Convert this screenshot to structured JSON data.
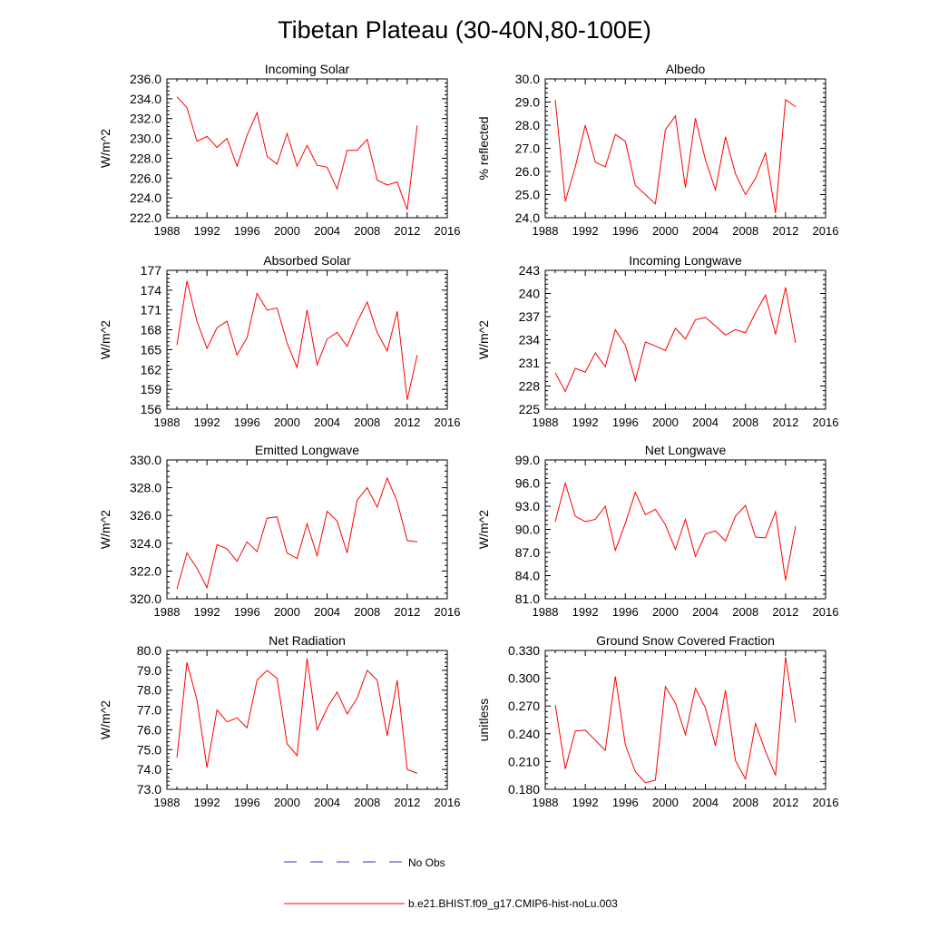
{
  "title": "Tibetan Plateau (30-40N,80-100E)",
  "colors": {
    "model": "#ff0000",
    "obs": "#3030c0",
    "axis": "#000000"
  },
  "legend": {
    "obs_label": "No Obs",
    "model_label": "b.e21.BHIST.f09_g17.CMIP6-hist-noLu.003"
  },
  "chart_data": [
    {
      "type": "line",
      "title": "Incoming Solar",
      "ylabel": "W/m^2",
      "xlim": [
        1988,
        2016
      ],
      "ylim": [
        222.0,
        236.0
      ],
      "x_ticks": [
        "1988",
        "1992",
        "1996",
        "2000",
        "2004",
        "2008",
        "2012",
        "2016"
      ],
      "y_ticks": [
        "222.0",
        "224.0",
        "226.0",
        "228.0",
        "230.0",
        "232.0",
        "234.0",
        "236.0"
      ],
      "x": [
        1989,
        1990,
        1991,
        1992,
        1993,
        1994,
        1995,
        1996,
        1997,
        1998,
        1999,
        2000,
        2001,
        2002,
        2003,
        2004,
        2005,
        2006,
        2007,
        2008,
        2009,
        2010,
        2011,
        2012,
        2013
      ],
      "series": [
        {
          "name": "b.e21.BHIST.f09_g17.CMIP6-hist-noLu.003",
          "values": [
            234.2,
            233.1,
            229.7,
            230.2,
            229.1,
            230.0,
            227.2,
            230.3,
            232.6,
            228.2,
            227.4,
            230.5,
            227.2,
            229.3,
            227.3,
            227.1,
            224.9,
            228.8,
            228.8,
            229.9,
            225.8,
            225.3,
            225.6,
            222.8,
            231.3
          ]
        }
      ]
    },
    {
      "type": "line",
      "title": "Albedo",
      "ylabel": "% reflected",
      "xlim": [
        1988,
        2016
      ],
      "ylim": [
        24.0,
        30.0
      ],
      "x_ticks": [
        "1988",
        "1992",
        "1996",
        "2000",
        "2004",
        "2008",
        "2012",
        "2016"
      ],
      "y_ticks": [
        "24.0",
        "25.0",
        "26.0",
        "27.0",
        "28.0",
        "29.0",
        "30.0"
      ],
      "x": [
        1989,
        1990,
        1991,
        1992,
        1993,
        1994,
        1995,
        1996,
        1997,
        1998,
        1999,
        2000,
        2001,
        2002,
        2003,
        2004,
        2005,
        2006,
        2007,
        2008,
        2009,
        2010,
        2011,
        2012,
        2013
      ],
      "series": [
        {
          "name": "b.e21.BHIST.f09_g17.CMIP6-hist-noLu.003",
          "values": [
            29.1,
            24.7,
            26.2,
            28.0,
            26.4,
            26.2,
            27.6,
            27.3,
            25.4,
            25.0,
            24.6,
            27.8,
            28.4,
            25.3,
            28.3,
            26.5,
            25.2,
            27.5,
            25.9,
            25.0,
            25.7,
            26.8,
            24.2,
            29.1,
            28.8
          ]
        }
      ]
    },
    {
      "type": "line",
      "title": "Absorbed Solar",
      "ylabel": "W/m^2",
      "xlim": [
        1988,
        2016
      ],
      "ylim": [
        156,
        177
      ],
      "x_ticks": [
        "1988",
        "1992",
        "1996",
        "2000",
        "2004",
        "2008",
        "2012",
        "2016"
      ],
      "y_ticks": [
        "156",
        "159",
        "162",
        "165",
        "168",
        "171",
        "174",
        "177"
      ],
      "x": [
        1989,
        1990,
        1991,
        1992,
        1993,
        1994,
        1995,
        1996,
        1997,
        1998,
        1999,
        2000,
        2001,
        2002,
        2003,
        2004,
        2005,
        2006,
        2007,
        2008,
        2009,
        2010,
        2011,
        2012,
        2013
      ],
      "series": [
        {
          "name": "b.e21.BHIST.f09_g17.CMIP6-hist-noLu.003",
          "values": [
            165.7,
            175.4,
            169.3,
            165.2,
            168.3,
            169.3,
            164.2,
            166.8,
            173.5,
            171.0,
            171.3,
            166.0,
            162.3,
            171.0,
            162.7,
            166.6,
            167.6,
            165.5,
            169.2,
            172.2,
            167.6,
            164.8,
            170.8,
            157.4,
            164.2
          ]
        }
      ]
    },
    {
      "type": "line",
      "title": "Incoming Longwave",
      "ylabel": "W/m^2",
      "xlim": [
        1988,
        2016
      ],
      "ylim": [
        225,
        243
      ],
      "x_ticks": [
        "1988",
        "1992",
        "1996",
        "2000",
        "2004",
        "2008",
        "2012",
        "2016"
      ],
      "y_ticks": [
        "225",
        "228",
        "231",
        "234",
        "237",
        "240",
        "243"
      ],
      "x": [
        1989,
        1990,
        1991,
        1992,
        1993,
        1994,
        1995,
        1996,
        1997,
        1998,
        1999,
        2000,
        2001,
        2002,
        2003,
        2004,
        2005,
        2006,
        2007,
        2008,
        2009,
        2010,
        2011,
        2012,
        2013
      ],
      "series": [
        {
          "name": "b.e21.BHIST.f09_g17.CMIP6-hist-noLu.003",
          "values": [
            229.7,
            227.3,
            230.3,
            229.8,
            232.3,
            230.5,
            235.3,
            233.3,
            228.7,
            233.7,
            233.2,
            232.6,
            235.5,
            234.1,
            236.6,
            236.9,
            235.8,
            234.6,
            235.3,
            234.9,
            237.5,
            239.8,
            234.7,
            240.8,
            233.6
          ]
        }
      ]
    },
    {
      "type": "line",
      "title": "Emitted Longwave",
      "ylabel": "W/m^2",
      "xlim": [
        1988,
        2016
      ],
      "ylim": [
        320.0,
        330.0
      ],
      "x_ticks": [
        "1988",
        "1992",
        "1996",
        "2000",
        "2004",
        "2008",
        "2012",
        "2016"
      ],
      "y_ticks": [
        "320.0",
        "322.0",
        "324.0",
        "326.0",
        "328.0",
        "330.0"
      ],
      "x": [
        1989,
        1990,
        1991,
        1992,
        1993,
        1994,
        1995,
        1996,
        1997,
        1998,
        1999,
        2000,
        2001,
        2002,
        2003,
        2004,
        2005,
        2006,
        2007,
        2008,
        2009,
        2010,
        2011,
        2012,
        2013
      ],
      "series": [
        {
          "name": "b.e21.BHIST.f09_g17.CMIP6-hist-noLu.003",
          "values": [
            320.7,
            323.3,
            322.2,
            320.8,
            323.9,
            323.6,
            322.7,
            324.1,
            323.4,
            325.8,
            325.9,
            323.3,
            322.9,
            325.4,
            323.1,
            326.3,
            325.6,
            323.3,
            327.1,
            328.0,
            326.6,
            328.7,
            327.0,
            324.2,
            324.1
          ]
        }
      ]
    },
    {
      "type": "line",
      "title": "Net Longwave",
      "ylabel": "W/m^2",
      "xlim": [
        1988,
        2016
      ],
      "ylim": [
        81.0,
        99.0
      ],
      "x_ticks": [
        "1988",
        "1992",
        "1996",
        "2000",
        "2004",
        "2008",
        "2012",
        "2016"
      ],
      "y_ticks": [
        "81.0",
        "84.0",
        "87.0",
        "90.0",
        "93.0",
        "96.0",
        "99.0"
      ],
      "x": [
        1989,
        1990,
        1991,
        1992,
        1993,
        1994,
        1995,
        1996,
        1997,
        1998,
        1999,
        2000,
        2001,
        2002,
        2003,
        2004,
        2005,
        2006,
        2007,
        2008,
        2009,
        2010,
        2011,
        2012,
        2013
      ],
      "series": [
        {
          "name": "b.e21.BHIST.f09_g17.CMIP6-hist-noLu.003",
          "values": [
            91.0,
            96.0,
            91.7,
            91.0,
            91.3,
            93.0,
            87.3,
            90.8,
            94.8,
            91.9,
            92.6,
            90.6,
            87.4,
            91.3,
            86.5,
            89.4,
            89.8,
            88.5,
            91.7,
            93.1,
            89.0,
            88.9,
            92.3,
            83.4,
            90.4
          ]
        }
      ]
    },
    {
      "type": "line",
      "title": "Net Radiation",
      "ylabel": "W/m^2",
      "xlim": [
        1988,
        2016
      ],
      "ylim": [
        73.0,
        80.0
      ],
      "x_ticks": [
        "1988",
        "1992",
        "1996",
        "2000",
        "2004",
        "2008",
        "2012",
        "2016"
      ],
      "y_ticks": [
        "73.0",
        "74.0",
        "75.0",
        "76.0",
        "77.0",
        "78.0",
        "79.0",
        "80.0"
      ],
      "x": [
        1989,
        1990,
        1991,
        1992,
        1993,
        1994,
        1995,
        1996,
        1997,
        1998,
        1999,
        2000,
        2001,
        2002,
        2003,
        2004,
        2005,
        2006,
        2007,
        2008,
        2009,
        2010,
        2011,
        2012,
        2013
      ],
      "series": [
        {
          "name": "b.e21.BHIST.f09_g17.CMIP6-hist-noLu.003",
          "values": [
            74.6,
            79.4,
            77.5,
            74.1,
            77.0,
            76.4,
            76.6,
            76.1,
            78.5,
            79.0,
            78.6,
            75.3,
            74.7,
            79.6,
            76.0,
            77.1,
            77.9,
            76.8,
            77.6,
            79.0,
            78.5,
            75.7,
            78.5,
            74.0,
            73.8
          ]
        }
      ]
    },
    {
      "type": "line",
      "title": "Ground Snow Covered Fraction",
      "ylabel": "unitless",
      "xlim": [
        1988,
        2016
      ],
      "ylim": [
        0.18,
        0.33
      ],
      "x_ticks": [
        "1988",
        "1992",
        "1996",
        "2000",
        "2004",
        "2008",
        "2012",
        "2016"
      ],
      "y_ticks": [
        "0.180",
        "0.210",
        "0.240",
        "0.270",
        "0.300",
        "0.330"
      ],
      "x": [
        1989,
        1990,
        1991,
        1992,
        1993,
        1994,
        1995,
        1996,
        1997,
        1998,
        1999,
        2000,
        2001,
        2002,
        2003,
        2004,
        2005,
        2006,
        2007,
        2008,
        2009,
        2010,
        2011,
        2012,
        2013
      ],
      "series": [
        {
          "name": "b.e21.BHIST.f09_g17.CMIP6-hist-noLu.003",
          "values": [
            0.271,
            0.202,
            0.243,
            0.244,
            0.233,
            0.222,
            0.302,
            0.228,
            0.199,
            0.187,
            0.19,
            0.291,
            0.273,
            0.239,
            0.289,
            0.268,
            0.227,
            0.287,
            0.211,
            0.191,
            0.251,
            0.221,
            0.195,
            0.323,
            0.252
          ]
        }
      ]
    }
  ]
}
